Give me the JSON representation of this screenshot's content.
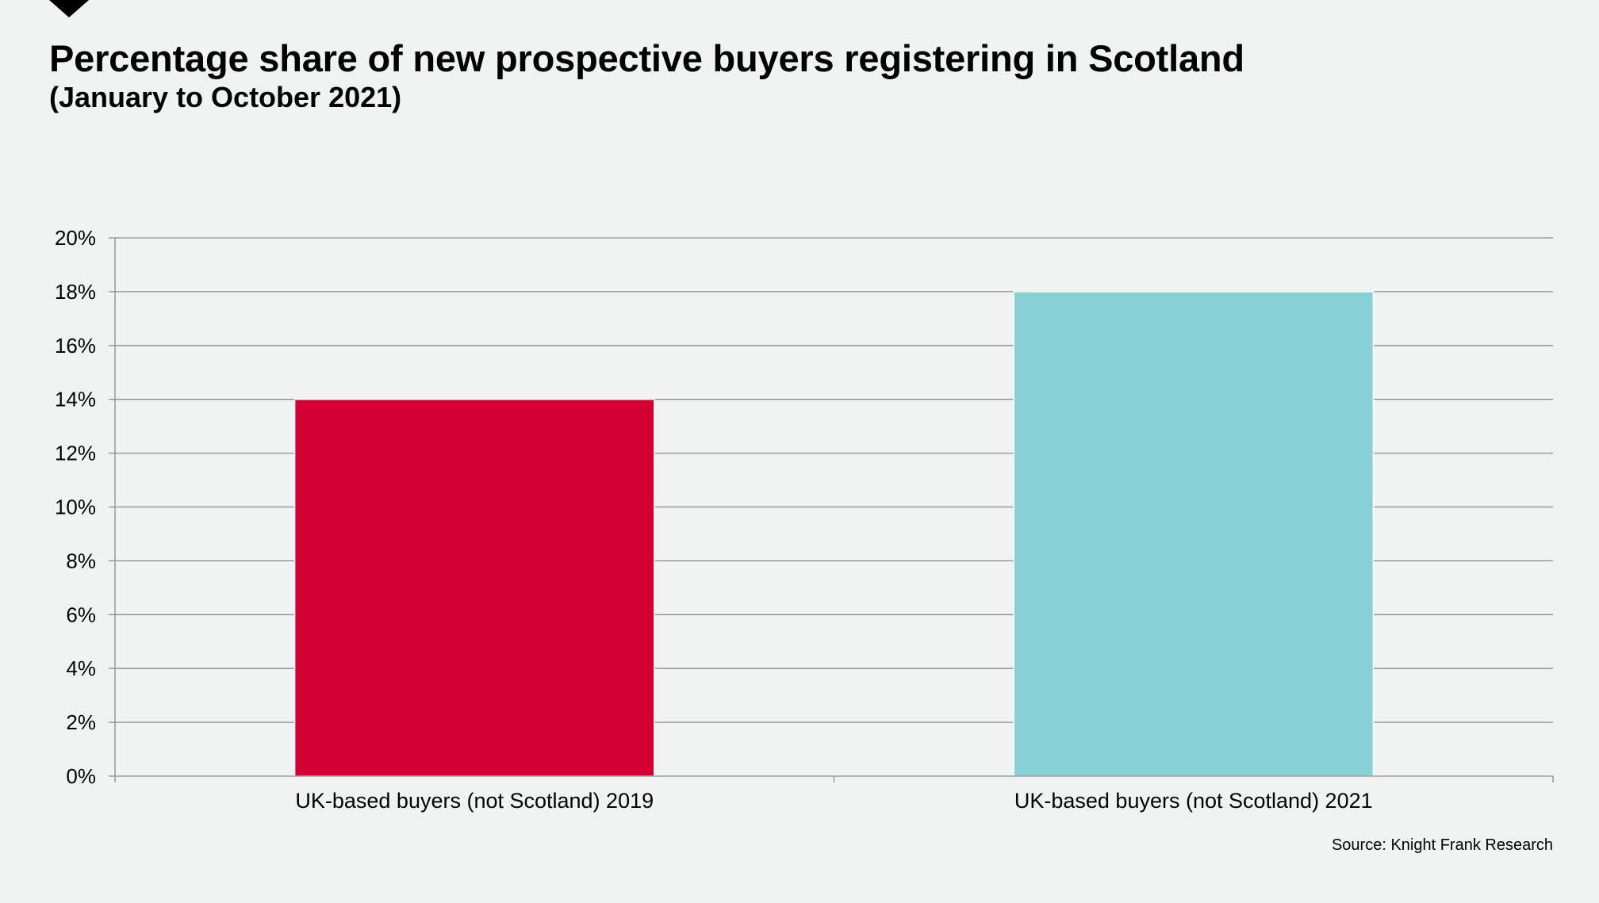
{
  "chart_data": {
    "type": "bar",
    "title": "Percentage share of new prospective buyers registering in Scotland",
    "subtitle": "(January to October 2021)",
    "categories": [
      "UK-based buyers (not Scotland) 2019",
      "UK-based buyers (not Scotland) 2021"
    ],
    "values": [
      14,
      18
    ],
    "bar_colors": [
      "#d50032",
      "#87d1d6"
    ],
    "xlabel": "",
    "ylabel": "",
    "ylim": [
      0,
      20
    ],
    "yticks": [
      0,
      2,
      4,
      6,
      8,
      10,
      12,
      14,
      16,
      18,
      20
    ],
    "ytick_labels": [
      "0%",
      "2%",
      "4%",
      "6%",
      "8%",
      "10%",
      "12%",
      "14%",
      "16%",
      "18%",
      "20%"
    ],
    "grid": true,
    "legend": "none",
    "source": "Source: Knight Frank Research"
  }
}
